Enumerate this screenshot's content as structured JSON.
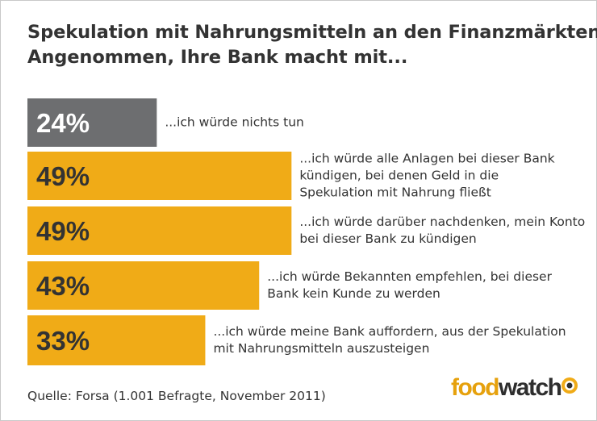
{
  "title": {
    "line1": "Spekulation mit Nahrungsmitteln an den Finanzmärkten:",
    "line2": "Angenommen, Ihre Bank macht mit..."
  },
  "chart_data": {
    "type": "bar",
    "orientation": "horizontal",
    "title": "Spekulation mit Nahrungsmitteln an den Finanzmärkten: Angenommen, Ihre Bank macht mit...",
    "xlabel": "",
    "ylabel": "",
    "xlim": [
      0,
      100
    ],
    "unit": "%",
    "categories": [
      [
        "...ich würde nichts tun"
      ],
      [
        "...ich würde alle Anlagen bei dieser Bank",
        "kündigen, bei denen Geld in die",
        "Spekulation mit Nahrung fließt"
      ],
      [
        "...ich würde darüber nachdenken, mein Konto",
        "bei dieser Bank zu kündigen"
      ],
      [
        "...ich würde Bekannten empfehlen, bei dieser",
        "Bank kein Kunde zu werden"
      ],
      [
        "...ich würde meine Bank auffordern, aus der Spekulation",
        "mit Nahrungsmitteln auszusteigen"
      ]
    ],
    "values": [
      24,
      49,
      49,
      43,
      33
    ],
    "value_labels": [
      "24%",
      "49%",
      "49%",
      "43%",
      "33%"
    ],
    "bar_colors": [
      "#6d6e70",
      "#f0ab17",
      "#f0ab17",
      "#f0ab17",
      "#f0ab17"
    ],
    "value_label_colors": [
      "#ffffff",
      "#333333",
      "#333333",
      "#333333",
      "#333333"
    ],
    "grid": false,
    "legend": "none"
  },
  "source": "Quelle: Forsa (1.001 Befragte, November 2011)",
  "logo": {
    "part1": "food",
    "part2": "watch"
  },
  "colors": {
    "accent": "#f0ab17",
    "gray_bar": "#6d6e70",
    "text": "#333333"
  }
}
